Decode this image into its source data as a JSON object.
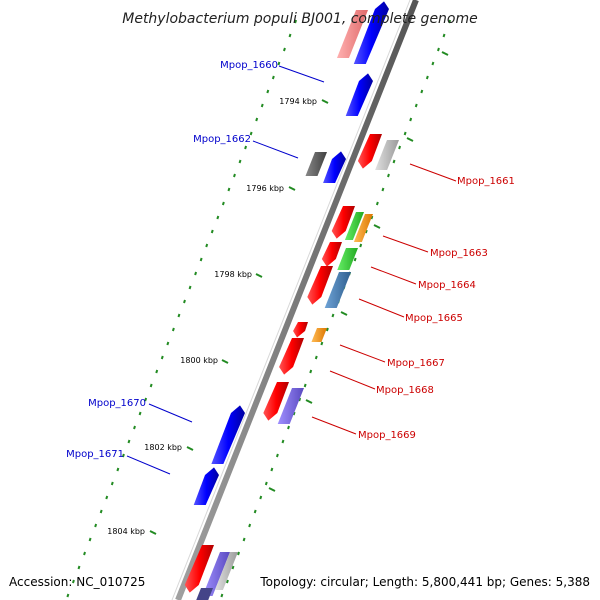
{
  "title": "Methylobacterium populi BJ001, complete genome",
  "accession": "Accession: NC_010725",
  "topology": "Topology: circular; Length: 5,800,441 bp; Genes: 5,388",
  "ticks": [
    {
      "label": "1794 kbp"
    },
    {
      "label": "1796 kbp"
    },
    {
      "label": "1798 kbp"
    },
    {
      "label": "1800 kbp"
    },
    {
      "label": "1802 kbp"
    },
    {
      "label": "1804 kbp"
    }
  ],
  "genes_left": [
    {
      "label": "Mpop_1660"
    },
    {
      "label": "Mpop_1662"
    },
    {
      "label": "Mpop_1670"
    },
    {
      "label": "Mpop_1671"
    }
  ],
  "genes_right": [
    {
      "label": "Mpop_1661"
    },
    {
      "label": "Mpop_1663"
    },
    {
      "label": "Mpop_1664"
    },
    {
      "label": "Mpop_1665"
    },
    {
      "label": "Mpop_1667"
    },
    {
      "label": "Mpop_1668"
    },
    {
      "label": "Mpop_1669"
    }
  ],
  "colors": {
    "forward_gene": "#0000ff",
    "reverse_gene": "#ff0000",
    "left_label": "#0000cc",
    "right_label": "#cc0000",
    "backbone": "#808080",
    "gc_dots": "#228b22",
    "gene_green": "#33cc33",
    "gene_orange": "#ff9900",
    "gene_steelblue": "#4682b4",
    "gene_slate": "#7b68ee",
    "gene_gray": "#c0c0c0",
    "gene_darkgray": "#606060",
    "gene_pink": "#f08080"
  }
}
